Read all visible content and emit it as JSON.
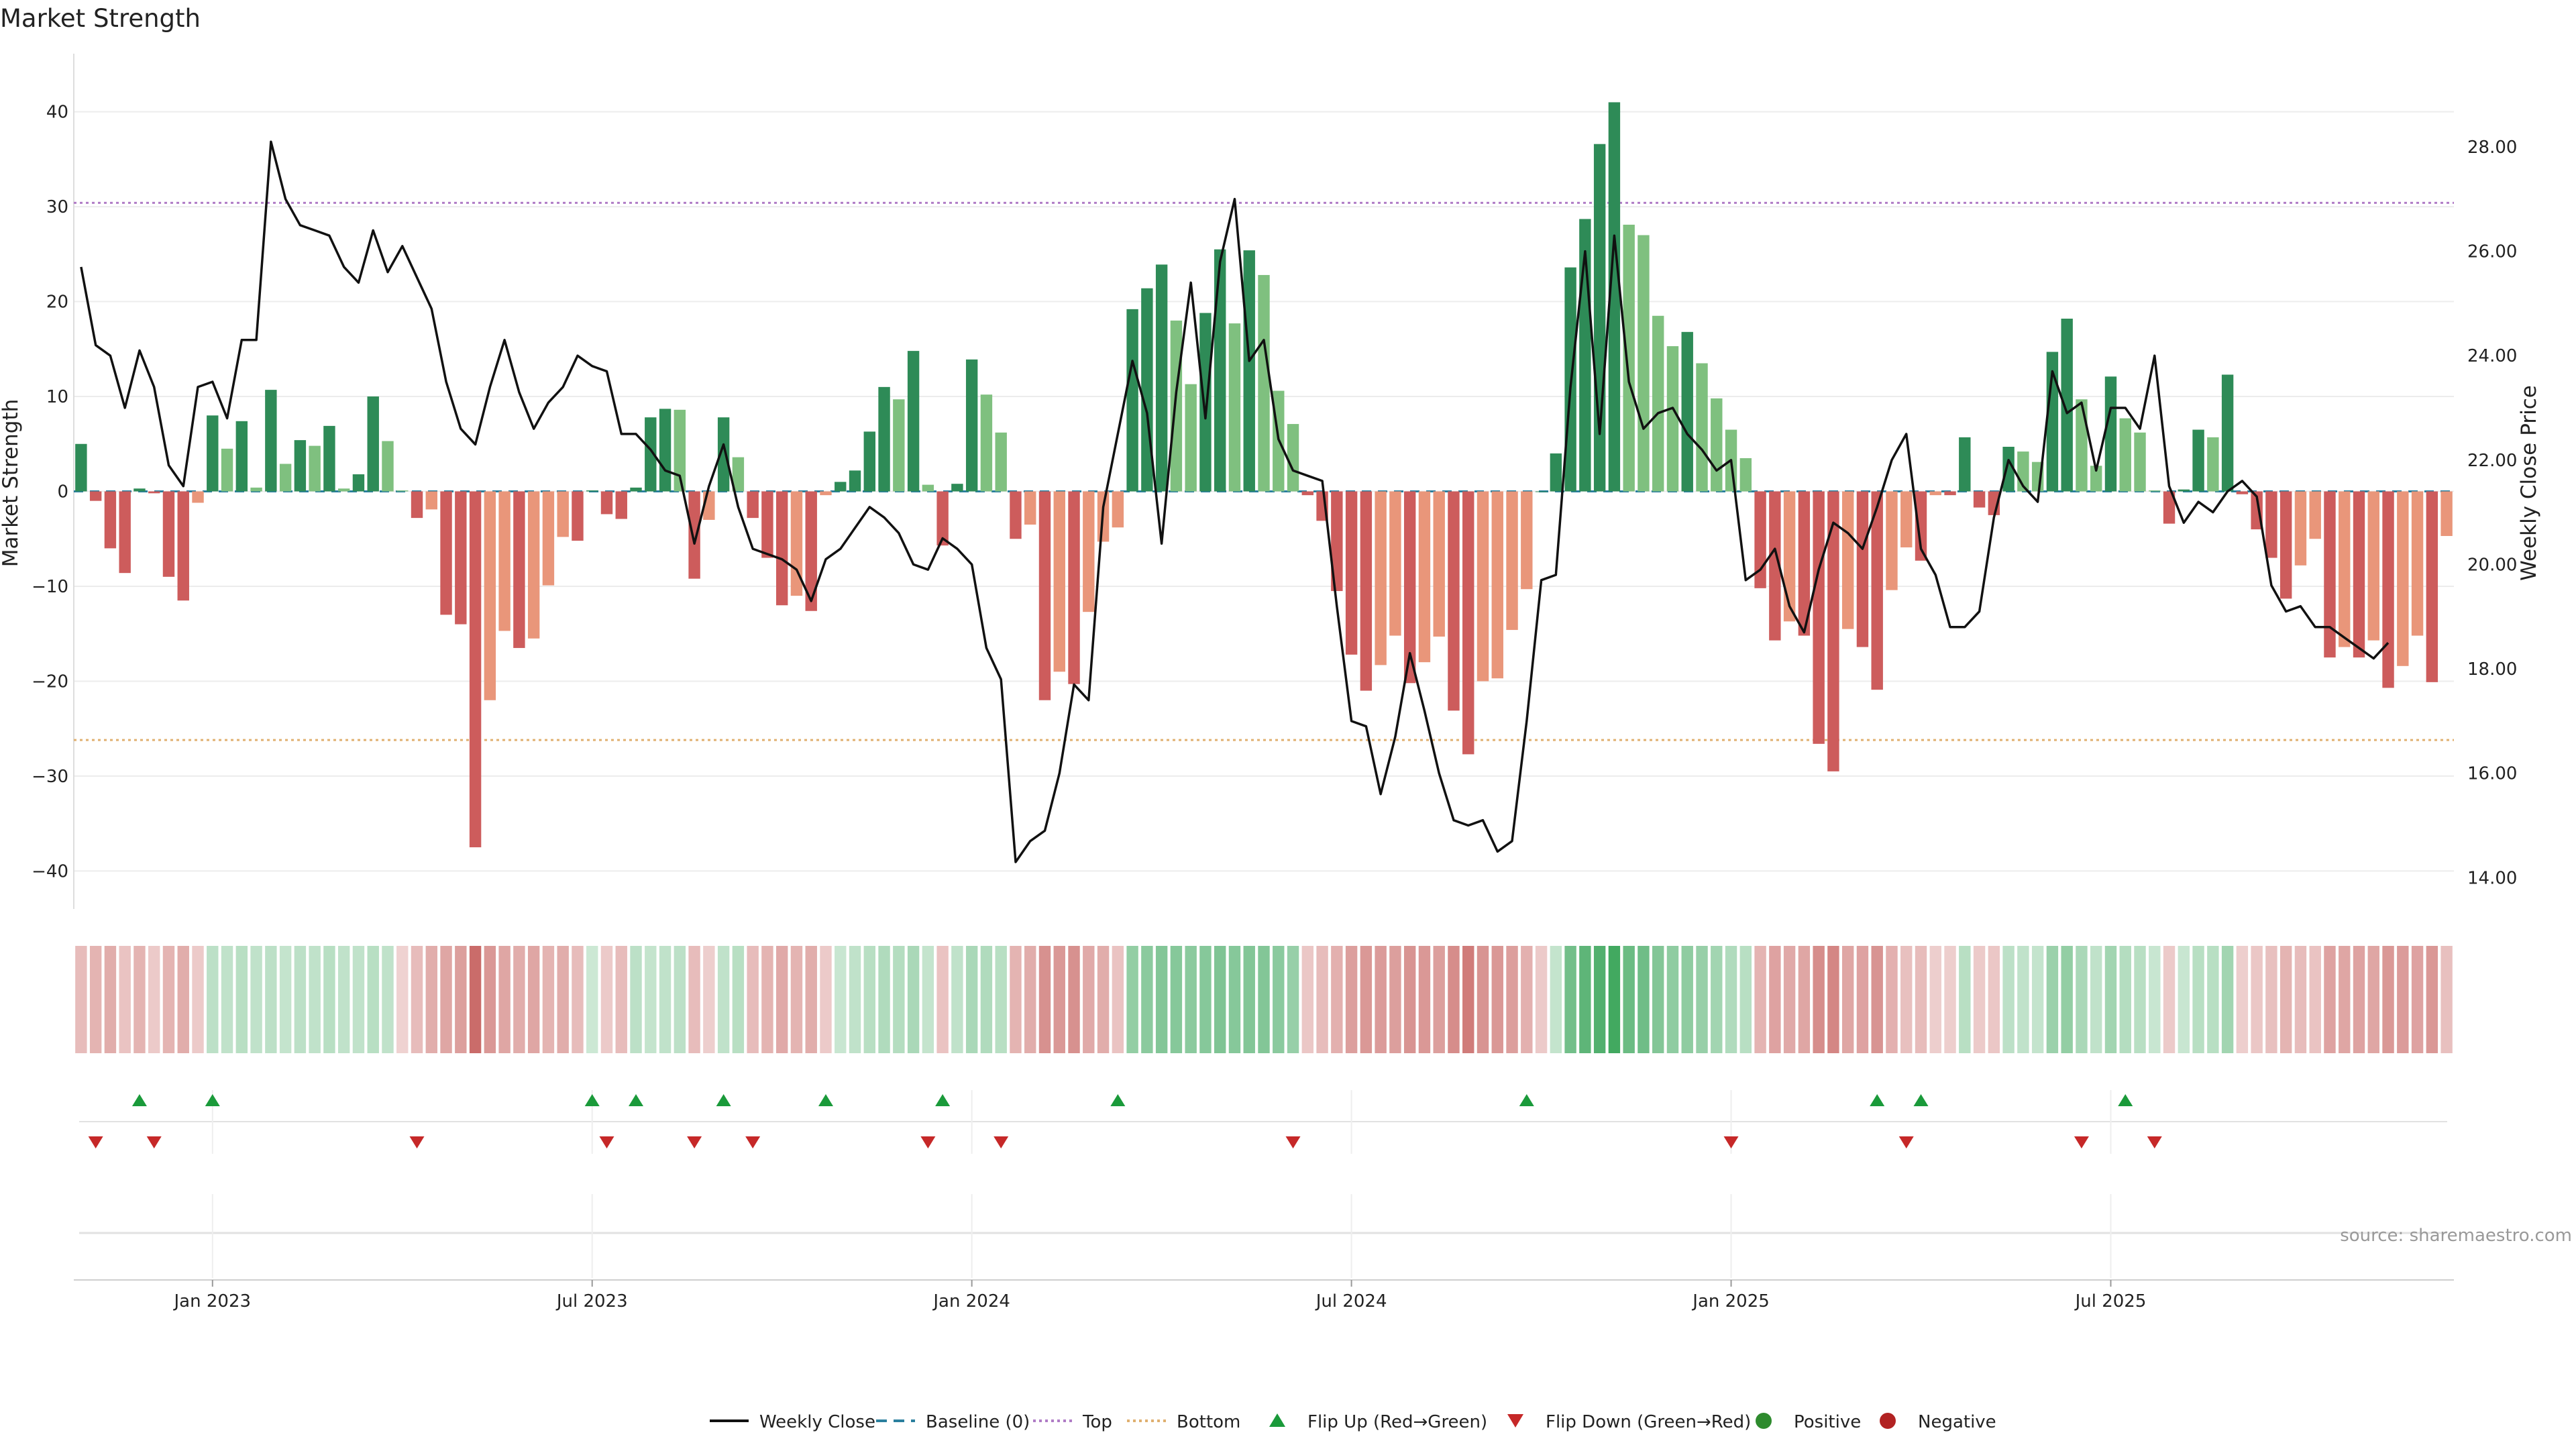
{
  "title": "Market Strength",
  "source": "source: sharemaestro.com",
  "colors": {
    "pos_strong": "#2e8b57",
    "pos_weak": "#7fc07f",
    "neg_strong": "#cd5c5c",
    "neg_weak": "#e9967a",
    "close_line": "#111111",
    "baseline": "#2a7f9e",
    "top": "#b07cc6",
    "bottom": "#e0b070",
    "flip_up": "#1a9a3a",
    "flip_down": "#c62828",
    "positive": "#2e8b2e",
    "negative": "#b22222"
  },
  "chart_data": {
    "type": "bar",
    "title": "Market Strength",
    "ylabel": "Market Strength",
    "y2label": "Weekly Close Price",
    "ylim": [
      -44,
      44
    ],
    "y2lim": [
      13.4,
      29.4
    ],
    "yticks": [
      -40,
      -30,
      -20,
      -10,
      0,
      10,
      20,
      30,
      40
    ],
    "y2ticks": [
      "14.00",
      "16.00",
      "18.00",
      "20.00",
      "22.00",
      "24.00",
      "26.00",
      "28.00"
    ],
    "y2tick_values": [
      14,
      16,
      18,
      20,
      22,
      24,
      26,
      28
    ],
    "top_level": 30.4,
    "bottom_level": -26.2,
    "xticks": [
      "Jan 2023",
      "Jul 2023",
      "Jan 2024",
      "Jul 2024",
      "Jan 2025",
      "Jul 2025"
    ],
    "xtick_weeks": [
      9,
      35,
      61,
      87,
      113,
      139
    ],
    "strength": [
      5,
      -1,
      -6,
      -8.6,
      0.3,
      -0.2,
      -9,
      -11.5,
      -1.2,
      8,
      4.5,
      7.4,
      0.4,
      10.7,
      2.9,
      5.4,
      4.8,
      6.9,
      0.3,
      1.8,
      10,
      5.3,
      0.1,
      -2.8,
      -1.9,
      -13,
      -14,
      -37.5,
      -22,
      -14.7,
      -16.5,
      -15.5,
      -9.9,
      -4.8,
      -5.2,
      0.1,
      -2.4,
      -2.9,
      0.4,
      7.8,
      8.7,
      8.6,
      -9.2,
      -3,
      7.8,
      3.6,
      -2.8,
      -7,
      -12,
      -11,
      -12.6,
      -0.4,
      1,
      2.2,
      6.3,
      11,
      9.7,
      14.8,
      0.7,
      -5.7,
      0.8,
      13.9,
      10.2,
      6.2,
      -5,
      -3.5,
      -22,
      -19,
      -20.3,
      -12.7,
      -5.3,
      -3.8,
      19.2,
      21.4,
      23.9,
      18,
      11.3,
      18.8,
      25.5,
      17.7,
      25.4,
      22.8,
      10.6,
      7.1,
      -0.4,
      -3.1,
      -10.5,
      -17.2,
      -21,
      -18.3,
      -15.2,
      -20.2,
      -18,
      -15.3,
      -23.1,
      -27.7,
      -20,
      -19.7,
      -14.6,
      -10.3,
      0,
      4,
      23.6,
      28.7,
      36.6,
      41,
      28.1,
      27,
      18.5,
      15.3,
      16.8,
      13.5,
      9.8,
      6.5,
      3.5,
      -10.2,
      -15.7,
      -13.7,
      -15.2,
      -26.6,
      -29.5,
      -14.5,
      -16.4,
      -20.9,
      -10.4,
      -5.9,
      -7.3,
      -0.4,
      -0.4,
      5.7,
      -1.7,
      -2.5,
      4.7,
      4.2,
      3.1,
      14.7,
      18.2,
      9.7,
      2.7,
      12.1,
      7.7,
      6.2,
      0.1,
      -3.4,
      0.2,
      6.5,
      5.7,
      12.3,
      -0.3,
      -4,
      -7,
      -11.3,
      -7.8,
      -5,
      -17.5,
      -16.4,
      -17.5,
      -15.7,
      -20.7,
      -18.4,
      -15.2,
      -20.1,
      -4.7
    ],
    "weekly_close": [
      25.7,
      24.2,
      24,
      23,
      24.1,
      23.4,
      21.9,
      21.5,
      23.4,
      23.5,
      22.8,
      24.3,
      24.3,
      28.1,
      27,
      26.5,
      26.4,
      26.3,
      25.7,
      25.4,
      26.4,
      25.6,
      26.1,
      25.5,
      24.9,
      23.5,
      22.6,
      22.3,
      23.4,
      24.3,
      23.3,
      22.6,
      23.1,
      23.4,
      24,
      23.8,
      23.7,
      22.5,
      22.5,
      22.2,
      21.8,
      21.7,
      20.4,
      21.5,
      22.3,
      21.1,
      20.3,
      20.2,
      20.1,
      19.9,
      19.3,
      20.1,
      20.3,
      20.7,
      21.1,
      20.9,
      20.6,
      20,
      19.9,
      20.5,
      20.3,
      20,
      18.4,
      17.8,
      14.3,
      14.7,
      14.9,
      16,
      17.7,
      17.4,
      21.1,
      22.5,
      23.9,
      22.9,
      20.4,
      23.3,
      25.4,
      22.8,
      25.8,
      27,
      23.9,
      24.3,
      22.4,
      21.8,
      21.7,
      21.6,
      19.2,
      17,
      16.9,
      15.6,
      16.7,
      18.3,
      17.2,
      16,
      15.1,
      15,
      15.1,
      14.5,
      14.7,
      17,
      19.7,
      19.8,
      23.4,
      26,
      22.5,
      26.3,
      23.5,
      22.6,
      22.9,
      23,
      22.5,
      22.2,
      21.8,
      22,
      19.7,
      19.9,
      20.3,
      19.2,
      18.7,
      19.9,
      20.8,
      20.6,
      20.3,
      21.1,
      22,
      22.5,
      20.3,
      19.8,
      18.8,
      18.8,
      19.1,
      20.9,
      22,
      21.5,
      21.2,
      23.7,
      22.9,
      23.1,
      21.8,
      23,
      23,
      22.6,
      24,
      21.5,
      20.8,
      21.2,
      21,
      21.4,
      21.6,
      21.3,
      19.6,
      19.1,
      19.2,
      18.8,
      18.8,
      18.6,
      18.4,
      18.2,
      18.5
    ],
    "heat_strength": [
      -8,
      -10,
      -12,
      -6,
      -10,
      -4,
      -10,
      -12,
      -4,
      6,
      5,
      7,
      5,
      6,
      4,
      6,
      5,
      7,
      5,
      5,
      7,
      5,
      -2,
      -8,
      -12,
      -14,
      -16,
      -30,
      -18,
      -14,
      -12,
      -14,
      -10,
      -12,
      -8,
      2,
      -4,
      -8,
      6,
      4,
      5,
      6,
      -8,
      -3,
      5,
      7,
      -8,
      -10,
      -13,
      -10,
      -12,
      -4,
      3,
      5,
      7,
      9,
      8,
      10,
      4,
      -6,
      5,
      10,
      9,
      7,
      -10,
      -12,
      -20,
      -18,
      -20,
      -13,
      -12,
      -6,
      16,
      18,
      20,
      19,
      18,
      19,
      21,
      19,
      20,
      20,
      18,
      15,
      -5,
      -8,
      -11,
      -16,
      -18,
      -17,
      -16,
      -19,
      -18,
      -16,
      -21,
      -26,
      -19,
      -18,
      -16,
      -11,
      -4,
      4,
      24,
      29,
      32,
      36,
      26,
      25,
      20,
      17,
      17,
      15,
      12,
      9,
      7,
      -10,
      -15,
      -13,
      -14,
      -21,
      -23,
      -14,
      -15,
      -19,
      -11,
      -7,
      -8,
      -3,
      -3,
      7,
      -4,
      -5,
      6,
      5,
      4,
      14,
      16,
      10,
      5,
      12,
      8,
      7,
      3,
      -4,
      3,
      7,
      7,
      12,
      -3,
      -5,
      -7,
      -10,
      -8,
      -6,
      -15,
      -14,
      -15,
      -14,
      -18,
      -17,
      -15,
      -18,
      -7
    ],
    "flip_up_weeks": [
      4,
      9,
      35,
      38,
      44,
      51,
      59,
      71,
      99,
      123,
      126,
      140
    ],
    "flip_down_weeks": [
      1,
      5,
      23,
      36,
      42,
      46,
      58,
      63,
      83,
      113,
      125,
      137,
      142
    ]
  },
  "legend": [
    {
      "label": "Weekly Close",
      "kind": "line"
    },
    {
      "label": "Baseline (0)",
      "kind": "dash"
    },
    {
      "label": "Top",
      "kind": "dot-top"
    },
    {
      "label": "Bottom",
      "kind": "dot-bottom"
    },
    {
      "label": "Flip Up (Red→Green)",
      "kind": "tri-up"
    },
    {
      "label": "Flip Down (Green→Red)",
      "kind": "tri-down"
    },
    {
      "label": "Positive",
      "kind": "dot-pos"
    },
    {
      "label": "Negative",
      "kind": "dot-neg"
    }
  ]
}
